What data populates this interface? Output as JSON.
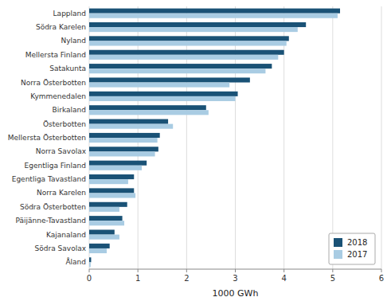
{
  "chart_data": {
    "type": "bar",
    "orientation": "horizontal",
    "categories": [
      "Lappland",
      "Södra Karelen",
      "Nyland",
      "Mellersta Finland",
      "Satakunta",
      "Norra Österbotten",
      "Kymmenedalen",
      "Birkaland",
      "Österbotten",
      "Mellersta Österbotten",
      "Norra Savolax",
      "Egentliga Finland",
      "Egentliga Tavastland",
      "Norra Karelen",
      "Södra Österbotten",
      "Päijänne-Tavastland",
      "Kajanaland",
      "Södra Savolax",
      "Åland"
    ],
    "series": [
      {
        "name": "2018",
        "color": "#1a5276",
        "values": [
          5.15,
          4.45,
          4.1,
          4.0,
          3.75,
          3.3,
          3.05,
          2.4,
          1.62,
          1.45,
          1.42,
          1.18,
          0.92,
          0.92,
          0.78,
          0.68,
          0.52,
          0.42,
          0.04
        ]
      },
      {
        "name": "2017",
        "color": "#a9cce3",
        "values": [
          5.1,
          4.28,
          4.05,
          3.88,
          3.62,
          2.88,
          3.0,
          2.45,
          1.72,
          1.4,
          1.35,
          1.08,
          0.8,
          0.95,
          0.62,
          0.72,
          0.62,
          0.36,
          0.03
        ]
      }
    ],
    "x_label": "1000 GWh",
    "xlim": [
      0,
      6
    ],
    "xticks": [
      0,
      1,
      2,
      3,
      4,
      5,
      6
    ],
    "grid": true,
    "legend": "lower right"
  }
}
